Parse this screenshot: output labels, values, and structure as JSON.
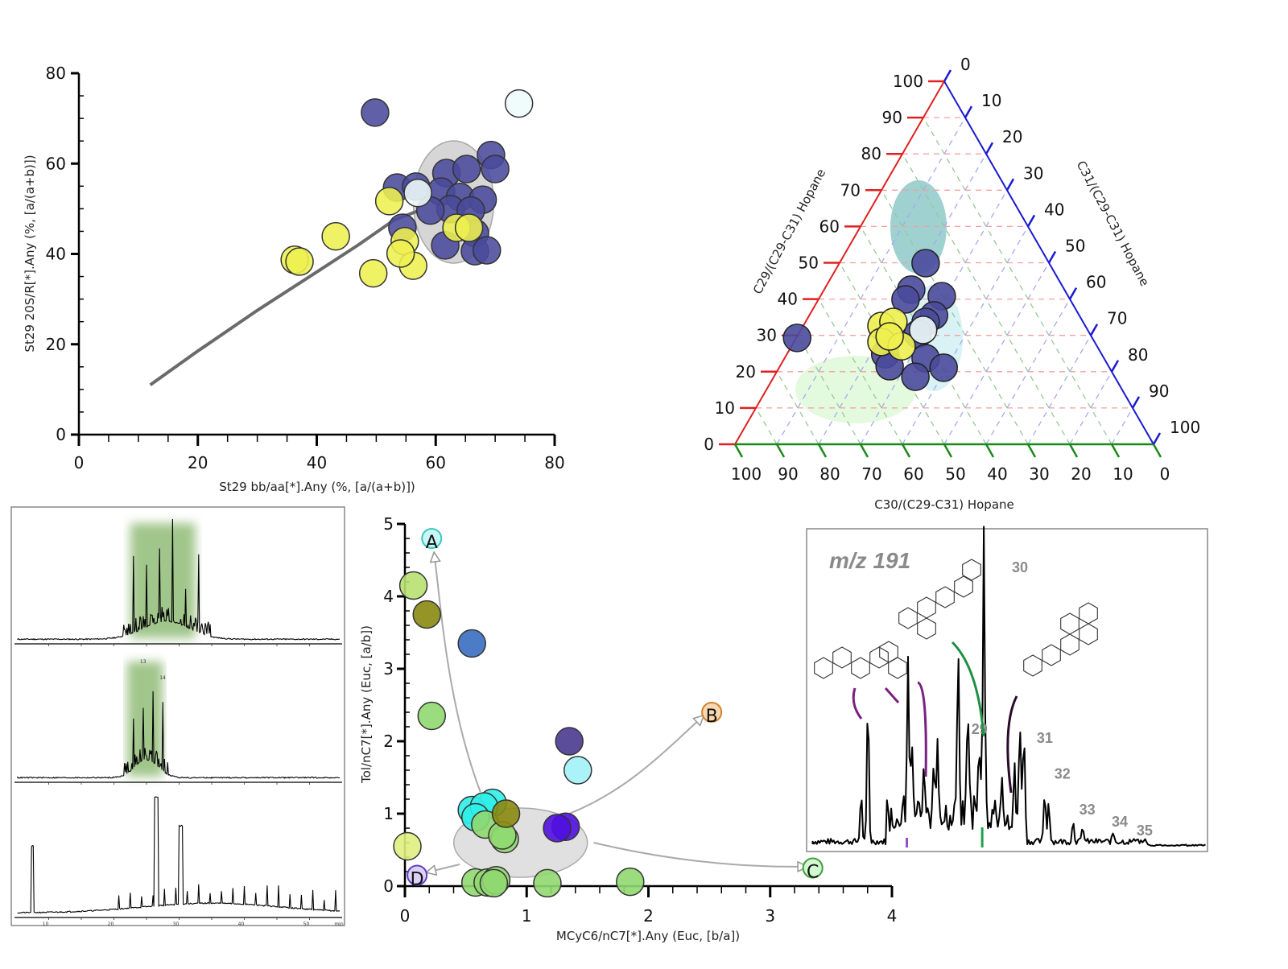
{
  "chart_data": [
    {
      "type": "scatter",
      "title": "",
      "xlabel": "St29 bb/aa[*].Any (%, [a/(a+b)])",
      "ylabel": "St29 20S/R[*].Any (%, [a/(a+b)])",
      "xlim": [
        0,
        80
      ],
      "ylim": [
        0,
        80
      ],
      "xticks": [
        "0",
        "20",
        "40",
        "60",
        "80"
      ],
      "yticks": [
        "0",
        "20",
        "40",
        "60",
        "80"
      ],
      "trend_curve": [
        [
          12,
          11
        ],
        [
          20,
          18.5
        ],
        [
          30,
          27.5
        ],
        [
          40,
          36
        ],
        [
          47,
          42
        ],
        [
          53,
          47.5
        ],
        [
          57,
          49.5
        ]
      ],
      "series": [
        {
          "name": "blue",
          "color": "#4a4a9c",
          "points": [
            [
              49.8,
              71.3
            ],
            [
              53.5,
              54.7
            ],
            [
              56.7,
              54.9
            ],
            [
              61.8,
              57.9
            ],
            [
              65.2,
              58.8
            ],
            [
              69.3,
              61.9
            ],
            [
              70,
              58.8
            ],
            [
              60.9,
              53.8
            ],
            [
              64.1,
              52.6
            ],
            [
              67.9,
              52
            ],
            [
              62.5,
              49.9
            ],
            [
              65.9,
              49.6
            ],
            [
              59.1,
              49.6
            ],
            [
              54.4,
              45.8
            ],
            [
              66.6,
              44.6
            ],
            [
              61.6,
              41.9
            ],
            [
              66.6,
              40.6
            ],
            [
              68.6,
              40.8
            ]
          ]
        },
        {
          "name": "yellow",
          "color": "#eef050",
          "points": [
            [
              52.2,
              51.7
            ],
            [
              43.2,
              43.9
            ],
            [
              36.3,
              38.7
            ],
            [
              37.1,
              38.3
            ],
            [
              49.5,
              35.7
            ],
            [
              54.8,
              42.8
            ],
            [
              56.2,
              37.4
            ],
            [
              54.1,
              40.1
            ],
            [
              63.5,
              45.8
            ],
            [
              65.6,
              45.8
            ]
          ]
        },
        {
          "name": "white",
          "color": "#eefafa",
          "points": [
            [
              74,
              73.3
            ],
            [
              57,
              53.5
            ]
          ]
        }
      ]
    },
    {
      "type": "scatter",
      "subtype": "ternary",
      "axes": {
        "left": "C29/(C29-C31) Hopane",
        "right": "C31/(C29-C31) Hopane",
        "bottom": "C30/(C29-C31) Hopane"
      },
      "ticks": [
        "0",
        "10",
        "20",
        "30",
        "40",
        "50",
        "60",
        "70",
        "80",
        "90",
        "100"
      ],
      "colors": {
        "left": "#e02020",
        "right": "#1a1ad0",
        "bottom": "#1a8a1a"
      },
      "series": [
        {
          "name": "blue",
          "color": "#4a4a9c",
          "points_c29_c31": [
            [
              29.3,
              0.2
            ],
            [
              49.9,
              20.6
            ],
            [
              42.6,
              20.8
            ],
            [
              39.9,
              20.8
            ],
            [
              40.8,
              29
            ],
            [
              35.5,
              29.8
            ],
            [
              33.7,
              28.7
            ],
            [
              30.4,
              28.5
            ],
            [
              24.8,
              23.5
            ],
            [
              21.5,
              26.2
            ],
            [
              23.7,
              33.7
            ],
            [
              21.1,
              39.3
            ],
            [
              18.6,
              33.8
            ]
          ]
        },
        {
          "name": "yellow",
          "color": "#eef050",
          "points_c29_c31": [
            [
              32.6,
              18.7
            ],
            [
              33.7,
              21
            ],
            [
              28.2,
              20.9
            ],
            [
              27,
              26.3
            ],
            [
              29.7,
              22.1
            ]
          ]
        },
        {
          "name": "white",
          "color": "#eefafa",
          "points_c29_c31": [
            [
              31.5,
              29.2
            ]
          ]
        }
      ]
    },
    {
      "type": "scatter",
      "xlabel": "MCyC6/nC7[*].Any (Euc, [b/a])",
      "ylabel": "Tol/nC7[*].Any (Euc, [a/b])",
      "xlim": [
        0,
        4
      ],
      "ylim": [
        0,
        5
      ],
      "xticks": [
        "0",
        "1",
        "2",
        "3",
        "4"
      ],
      "yticks": [
        "0",
        "1",
        "2",
        "3",
        "4",
        "5"
      ],
      "endmembers": [
        {
          "label": "A",
          "x": 0.22,
          "y": 4.8,
          "color": "#c8f6f4",
          "stroke": "#3cc8c0"
        },
        {
          "label": "B",
          "x": 2.52,
          "y": 2.4,
          "color": "#fbd9b0",
          "stroke": "#d08030"
        },
        {
          "label": "C",
          "x": 3.35,
          "y": 0.25,
          "color": "#d4f8d0",
          "stroke": "#40a040"
        },
        {
          "label": "D",
          "x": 0.1,
          "y": 0.15,
          "color": "#dcd0f8",
          "stroke": "#6040c0"
        }
      ],
      "points": [
        {
          "x": 0.07,
          "y": 4.15,
          "color": "#b8e070"
        },
        {
          "x": 0.18,
          "y": 3.75,
          "color": "#8a8a10"
        },
        {
          "x": 0.55,
          "y": 3.35,
          "color": "#3a6ec0"
        },
        {
          "x": 0.22,
          "y": 2.35,
          "color": "#90d870"
        },
        {
          "x": 1.35,
          "y": 2.0,
          "color": "#4a3a90"
        },
        {
          "x": 1.42,
          "y": 1.6,
          "color": "#a0f2f8"
        },
        {
          "x": 0.02,
          "y": 0.55,
          "color": "#e0f080"
        },
        {
          "x": 0.72,
          "y": 1.15,
          "color": "#30f0e8"
        },
        {
          "x": 0.55,
          "y": 1.05,
          "color": "#30f0e8"
        },
        {
          "x": 0.65,
          "y": 1.1,
          "color": "#30f0e8"
        },
        {
          "x": 0.58,
          "y": 0.95,
          "color": "#30f0e8"
        },
        {
          "x": 0.66,
          "y": 0.85,
          "color": "#90d870"
        },
        {
          "x": 0.82,
          "y": 0.65,
          "color": "#90d870"
        },
        {
          "x": 0.8,
          "y": 0.7,
          "color": "#90d870"
        },
        {
          "x": 0.83,
          "y": 1.0,
          "color": "#8a8a10"
        },
        {
          "x": 1.32,
          "y": 0.82,
          "color": "#5010e0"
        },
        {
          "x": 1.25,
          "y": 0.8,
          "color": "#5010e0"
        },
        {
          "x": 0.58,
          "y": 0.05,
          "color": "#90d870"
        },
        {
          "x": 0.68,
          "y": 0.05,
          "color": "#90d870"
        },
        {
          "x": 0.75,
          "y": 0.08,
          "color": "#90d870"
        },
        {
          "x": 0.73,
          "y": 0.04,
          "color": "#90d870"
        },
        {
          "x": 1.17,
          "y": 0.04,
          "color": "#90d870"
        },
        {
          "x": 1.85,
          "y": 0.06,
          "color": "#90d870"
        }
      ]
    },
    {
      "type": "line",
      "subtype": "mass_chromatogram",
      "title": "m/z 191",
      "peak_labels": [
        {
          "label": "29",
          "x": 39.5,
          "h": 0.37
        },
        {
          "label": "30",
          "x": 49.6,
          "h": 1.0
        },
        {
          "label": "31",
          "x": 55.8,
          "h": 0.34
        },
        {
          "label": "32",
          "x": 60.2,
          "h": 0.22
        },
        {
          "label": "33",
          "x": 66.4,
          "h": 0.1
        },
        {
          "label": "34",
          "x": 74.5,
          "h": 0.06
        },
        {
          "label": "35",
          "x": 80.7,
          "h": 0.03
        }
      ],
      "peaks": [
        [
          13.6,
          0.16
        ],
        [
          15.3,
          0.47
        ],
        [
          25.3,
          0.58
        ],
        [
          26.3,
          0.26
        ],
        [
          29.3,
          0.16
        ],
        [
          31.7,
          0.22
        ],
        [
          32.7,
          0.24
        ],
        [
          37.8,
          0.58
        ],
        [
          40.2,
          0.39
        ],
        [
          43,
          0.28
        ],
        [
          44.2,
          1.0
        ],
        [
          48.8,
          0.13
        ],
        [
          51.8,
          0.12
        ],
        [
          53.2,
          0.34
        ],
        [
          54.2,
          0.25
        ],
        [
          59.4,
          0.17
        ],
        [
          60.4,
          0.14
        ],
        [
          66.5,
          0.07
        ],
        [
          68.9,
          0.05
        ],
        [
          76.5,
          0.03
        ],
        [
          82.3,
          0.015
        ]
      ]
    },
    {
      "type": "line",
      "subtype": "gas_chromatograms",
      "panels": [
        {
          "hump_center": 46,
          "hump_width": 10,
          "highlight": [
            35,
            55
          ],
          "peak_labels": []
        },
        {
          "hump_center": 40,
          "hump_width": 5,
          "highlight": [
            34,
            45
          ],
          "peak_labels": [
            "13",
            "14"
          ]
        },
        {
          "hump_center": 60,
          "hump_width": 30,
          "highlight": null,
          "peak_labels": [],
          "xticks": [
            "10",
            "20",
            "30",
            "40",
            "50",
            "min"
          ]
        }
      ]
    }
  ]
}
